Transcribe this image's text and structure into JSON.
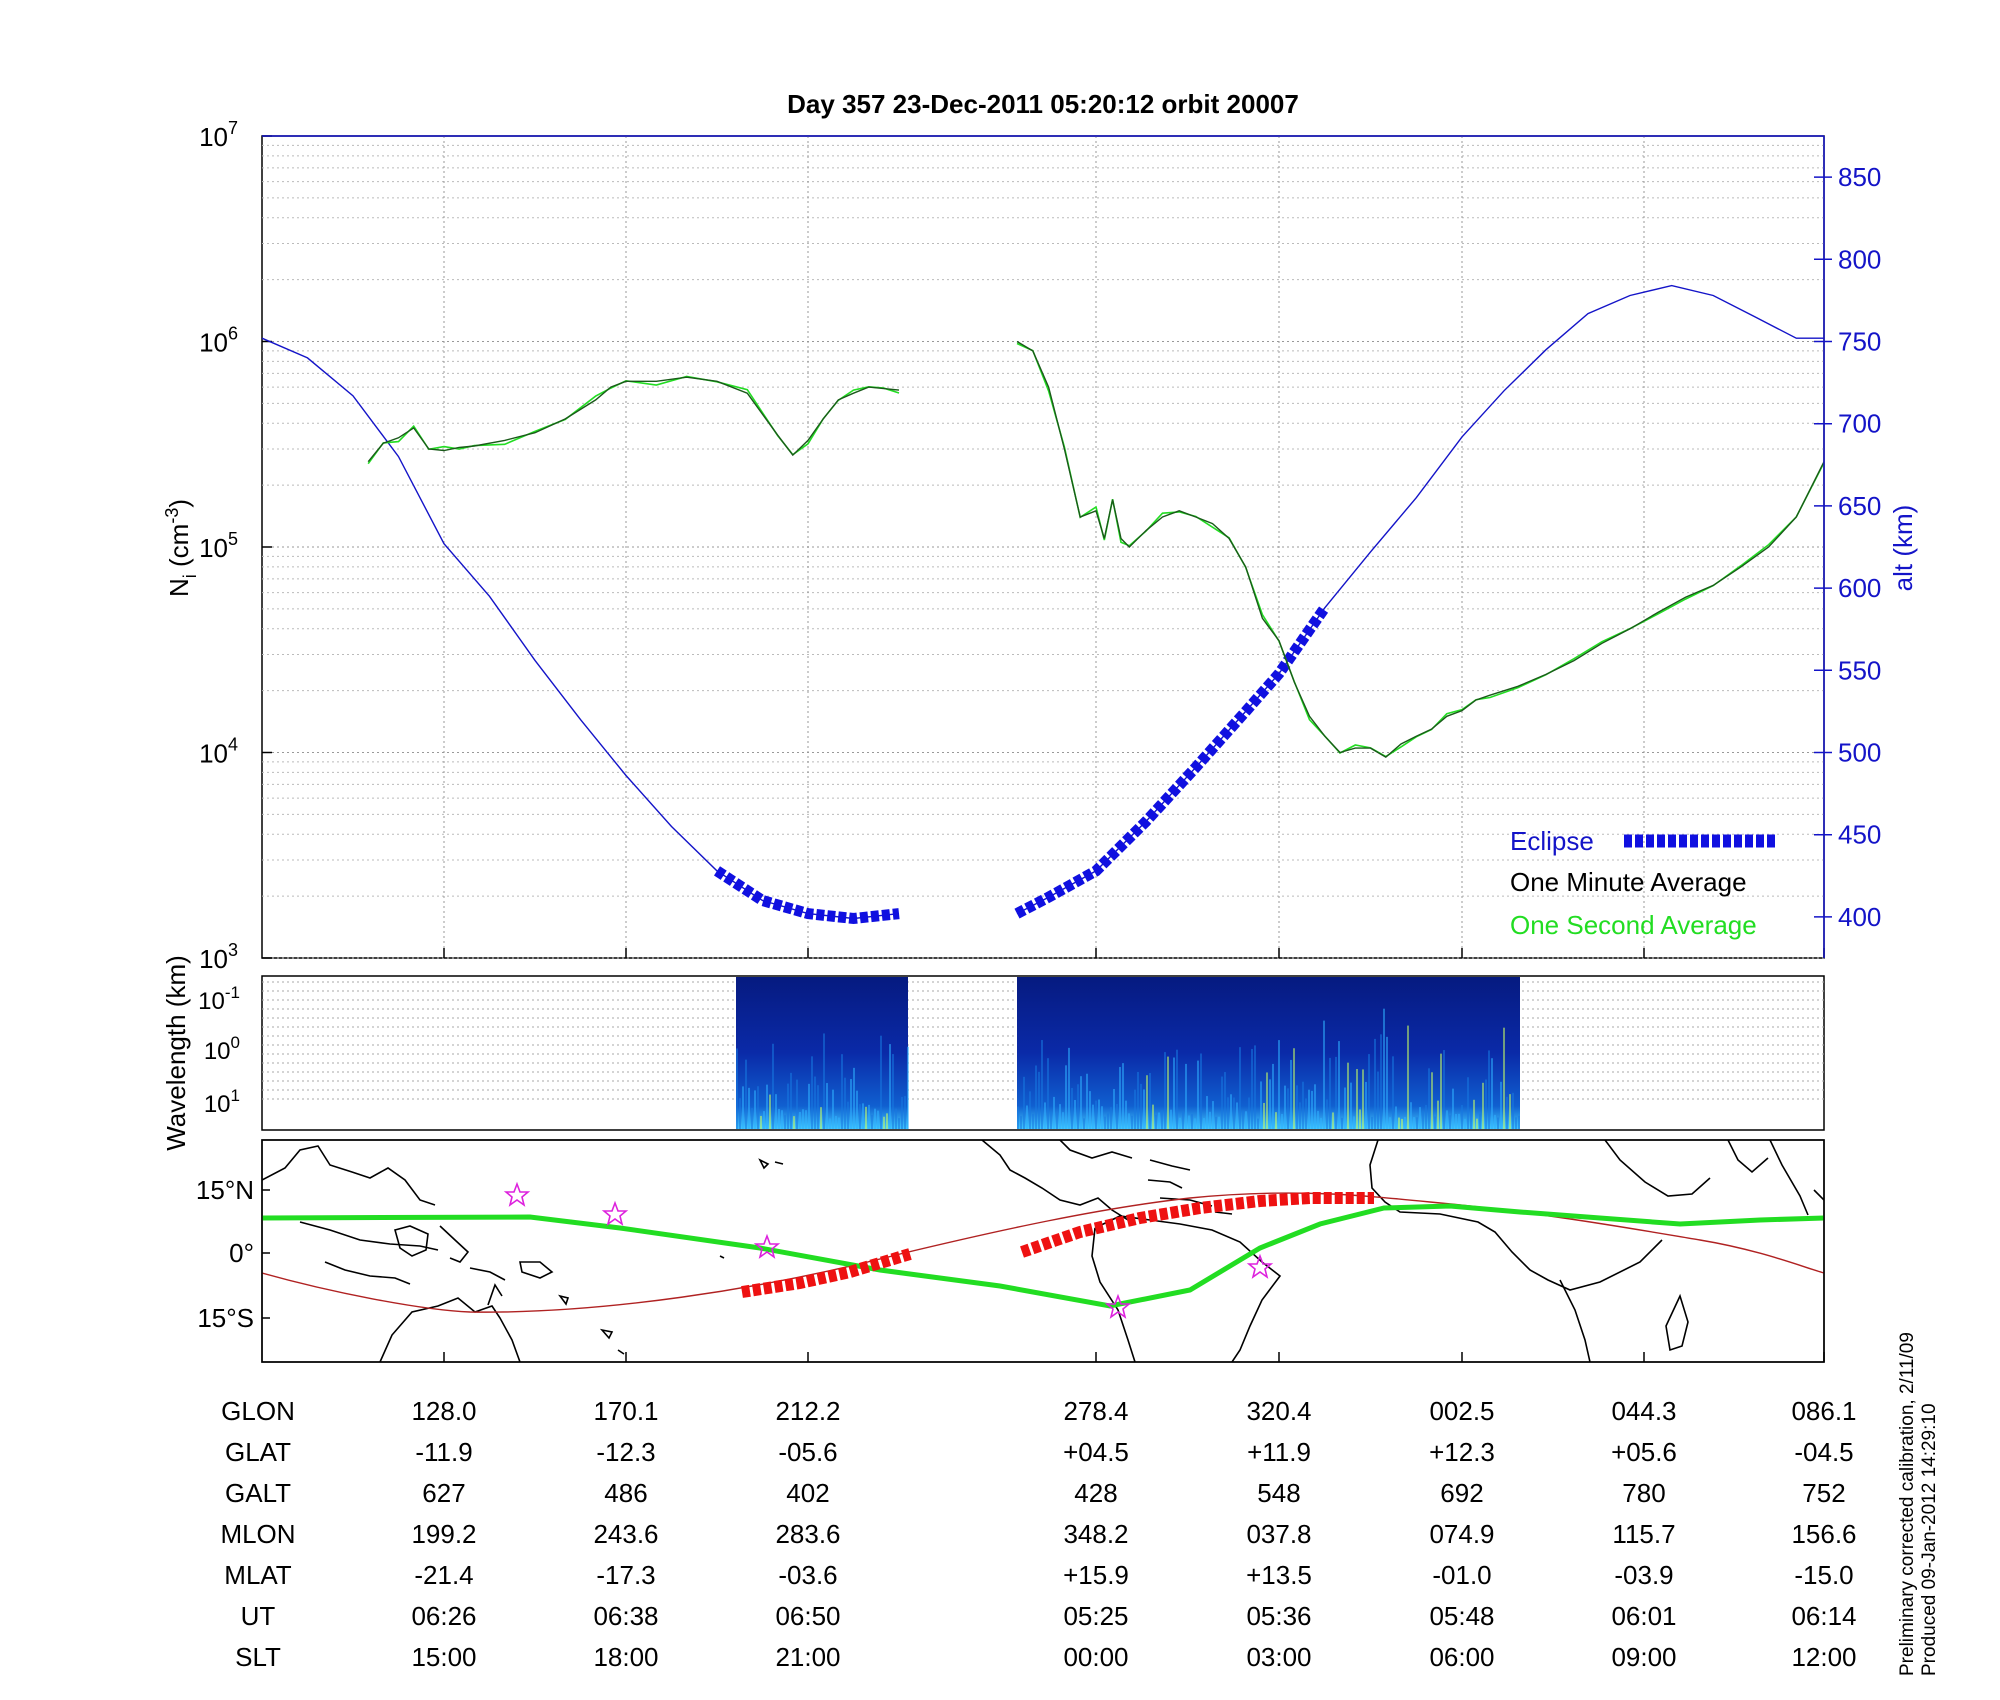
{
  "chart_data": [
    {
      "type": "line",
      "panel": "density-altitude",
      "title": "Day 357  23-Dec-2011 05:20:12   orbit 20007",
      "ylabel_left": "N_i (cm^-3)",
      "ylabel_left_base": "N",
      "ylabel_left_sub": "i",
      "ylabel_left_unit": "(cm",
      "ylabel_left_exp": "-3",
      "ylabel_left_close": ")",
      "ylabel_right": "alt (km)",
      "y_left_scale": "log",
      "y_left_range": [
        1000,
        10000000
      ],
      "y_left_ticks": [
        {
          "base": "10",
          "exp": "3",
          "value": 1000
        },
        {
          "base": "10",
          "exp": "4",
          "value": 10000
        },
        {
          "base": "10",
          "exp": "5",
          "value": 100000
        },
        {
          "base": "10",
          "exp": "6",
          "value": 1000000
        },
        {
          "base": "10",
          "exp": "7",
          "value": 10000000
        }
      ],
      "y_right_range": [
        375,
        875
      ],
      "y_right_ticks": [
        "400",
        "450",
        "500",
        "550",
        "600",
        "650",
        "700",
        "750",
        "800",
        "850"
      ],
      "x_ticks_ut": [
        "06:26",
        "06:38",
        "06:50",
        "05:25",
        "05:36",
        "05:48",
        "06:01",
        "06:14"
      ],
      "grid": true,
      "legend_position": "bottom-right",
      "legend": [
        {
          "label": "Eclipse",
          "color": "#1010e0",
          "style": "thick-dashed"
        },
        {
          "label": "One Minute Average",
          "color": "#000000",
          "style": "line"
        },
        {
          "label": "One Second Average",
          "color": "#22dd22",
          "style": "line"
        }
      ],
      "series": [
        {
          "name": "One Minute Average",
          "color": "#1a5a1a",
          "segments": [
            {
              "ut": [
                "06:21",
                "06:22",
                "06:23",
                "06:24",
                "06:25",
                "06:26",
                "06:27",
                "06:28",
                "06:30",
                "06:32",
                "06:34",
                "06:36",
                "06:37",
                "06:38",
                "06:40",
                "06:42",
                "06:44",
                "06:46",
                "06:48",
                "06:49",
                "06:50",
                "06:51",
                "06:52",
                "06:53",
                "06:54",
                "06:55",
                "06:56"
              ],
              "density": [
                260000,
                320000,
                340000,
                380000,
                300000,
                295000,
                305000,
                310000,
                330000,
                360000,
                420000,
                520000,
                600000,
                640000,
                640000,
                670000,
                640000,
                560000,
                350000,
                280000,
                330000,
                420000,
                520000,
                560000,
                600000,
                590000,
                580000
              ]
            },
            {
              "ut": [
                "05:20",
                "05:21",
                "05:22",
                "05:23",
                "05:24",
                "05:25",
                "05:25.5",
                "05:26",
                "05:26.5",
                "05:27",
                "05:28",
                "05:29",
                "05:30",
                "05:31",
                "05:32",
                "05:33",
                "05:34",
                "05:35",
                "05:36",
                "05:37",
                "05:38",
                "05:39",
                "05:40",
                "05:41",
                "05:42",
                "05:43",
                "05:44",
                "05:45",
                "05:46",
                "05:47",
                "05:48",
                "05:49",
                "05:50",
                "05:52",
                "05:54",
                "05:56",
                "05:58",
                "06:00",
                "06:02",
                "06:04",
                "06:06",
                "06:08",
                "06:10",
                "06:12",
                "06:14"
              ],
              "density": [
                1000000,
                900000,
                600000,
                300000,
                140000,
                150000,
                110000,
                170000,
                110000,
                100000,
                120000,
                140000,
                150000,
                140000,
                130000,
                110000,
                80000,
                45000,
                35000,
                22000,
                15000,
                12000,
                10000,
                10500,
                10500,
                9500,
                11000,
                12000,
                13000,
                15000,
                16000,
                18000,
                19000,
                21000,
                24000,
                28000,
                34000,
                40000,
                48000,
                57000,
                65000,
                80000,
                100000,
                140000,
                260000
              ]
            }
          ]
        },
        {
          "name": "Altitude",
          "color": "#1414c8",
          "unit": "km",
          "segments": [
            {
              "ut": [
                "06:14",
                "06:17",
                "06:20",
                "06:23",
                "06:26",
                "06:29",
                "06:32",
                "06:35",
                "06:38",
                "06:41",
                "06:44",
                "06:47",
                "06:50",
                "06:53",
                "06:56"
              ],
              "alt": [
                752,
                740,
                717,
                680,
                627,
                595,
                556,
                520,
                486,
                455,
                428,
                410,
                402,
                399,
                402
              ]
            },
            {
              "ut": [
                "05:20",
                "05:22",
                "05:25",
                "05:28",
                "05:31",
                "05:34",
                "05:36",
                "05:39",
                "05:42",
                "05:45",
                "05:48",
                "05:51",
                "05:54",
                "05:57",
                "06:00",
                "06:03",
                "06:06",
                "06:09",
                "06:12",
                "06:14"
              ],
              "alt": [
                402,
                412,
                428,
                458,
                491,
                525,
                548,
                588,
                622,
                655,
                692,
                720,
                745,
                767,
                778,
                784,
                778,
                765,
                752,
                752
              ]
            }
          ]
        }
      ],
      "eclipse_segments": [
        {
          "ut_start": "06:44",
          "ut_end": "06:56"
        },
        {
          "ut_start": "05:20",
          "ut_end": "05:40"
        }
      ]
    },
    {
      "type": "heatmap",
      "panel": "wavelength-spectrogram",
      "ylabel": "Wavelength (km)",
      "y_scale": "log",
      "y_ticks": [
        {
          "base": "10",
          "exp": "-1"
        },
        {
          "base": "10",
          "exp": "0"
        },
        {
          "base": "10",
          "exp": "1"
        }
      ],
      "colormap": "jet",
      "data_blocks": [
        {
          "ut_start": "06:46",
          "ut_end": "06:56"
        },
        {
          "ut_start": "05:20",
          "ut_end": "05:49"
        }
      ]
    },
    {
      "type": "scatter",
      "panel": "ground-track-map",
      "y_ticks": [
        "15°N",
        "0°",
        "15°S"
      ],
      "y_range": [
        -25,
        25
      ],
      "x_range_glon": [
        86,
        446
      ],
      "tracks": [
        {
          "name": "satellite ground track",
          "color": "#aa2222"
        },
        {
          "name": "magnetic equator",
          "color": "#22dd22"
        },
        {
          "name": "eclipse",
          "color": "#ee1111"
        }
      ]
    },
    {
      "type": "table",
      "panel": "ephemeris",
      "rows": [
        {
          "label": "GLON",
          "values": [
            "128.0",
            "170.1",
            "212.2",
            "278.4",
            "320.4",
            "002.5",
            "044.3",
            "086.1"
          ]
        },
        {
          "label": "GLAT",
          "values": [
            "-11.9",
            "-12.3",
            "-05.6",
            "+04.5",
            "+11.9",
            "+12.3",
            "+05.6",
            "-04.5"
          ]
        },
        {
          "label": "GALT",
          "values": [
            "627",
            "486",
            "402",
            "428",
            "548",
            "692",
            "780",
            "752"
          ]
        },
        {
          "label": "MLON",
          "values": [
            "199.2",
            "243.6",
            "283.6",
            "348.2",
            "037.8",
            "074.9",
            "115.7",
            "156.6"
          ]
        },
        {
          "label": "MLAT",
          "values": [
            "-21.4",
            "-17.3",
            "-03.6",
            "+15.9",
            "+13.5",
            "-01.0",
            "-03.9",
            "-15.0"
          ]
        },
        {
          "label": "UT",
          "values": [
            "06:26",
            "06:38",
            "06:50",
            "05:25",
            "05:36",
            "05:48",
            "06:01",
            "06:14"
          ]
        },
        {
          "label": "SLT",
          "values": [
            "15:00",
            "18:00",
            "21:00",
            "00:00",
            "03:00",
            "06:00",
            "09:00",
            "12:00"
          ]
        }
      ]
    }
  ],
  "side_notes": {
    "line1": "Preliminary corrected calibration, 2/11/09",
    "line2": "Produced 09-Jan-2012 14:29:10"
  }
}
